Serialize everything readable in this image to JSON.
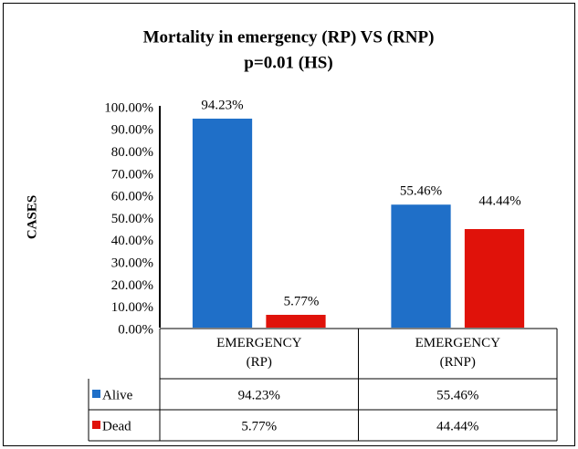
{
  "chart_data": {
    "type": "bar",
    "title": "Mortality in emergency (RP) VS (RNP)",
    "subtitle": "p=0.01 (HS)",
    "y_label": "CASES",
    "categories": [
      "EMERGENCY (RP)",
      "EMERGENCY (RNP)"
    ],
    "series": [
      {
        "name": "Alive",
        "color": "#1f6fc8",
        "values": [
          94.23,
          55.46
        ],
        "value_labels": [
          "94.23%",
          "55.46%"
        ]
      },
      {
        "name": "Dead",
        "color": "#e0120a",
        "values": [
          5.77,
          44.44
        ],
        "value_labels": [
          "5.77%",
          "44.44%"
        ]
      }
    ],
    "ylim": [
      0,
      100
    ],
    "yticks": [
      {
        "value": 0,
        "label": "0.00%"
      },
      {
        "value": 10,
        "label": "10.00%"
      },
      {
        "value": 20,
        "label": "20.00%"
      },
      {
        "value": 30,
        "label": "30.00%"
      },
      {
        "value": 40,
        "label": "40.00%"
      },
      {
        "value": 50,
        "label": "50.00%"
      },
      {
        "value": 60,
        "label": "60.00%"
      },
      {
        "value": 70,
        "label": "70.00%"
      },
      {
        "value": 80,
        "label": "80.00%"
      },
      {
        "value": 90,
        "label": "90.00%"
      },
      {
        "value": 100,
        "label": "100.00%"
      }
    ],
    "grid": false,
    "data_table": true
  }
}
